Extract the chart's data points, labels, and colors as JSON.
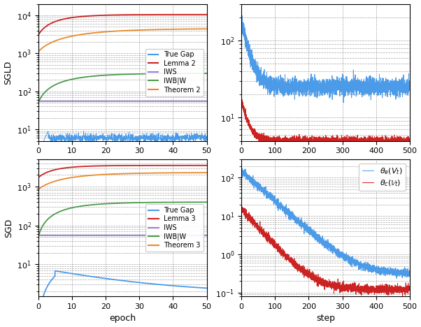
{
  "fig_width": 6.02,
  "fig_height": 4.68,
  "dpi": 100,
  "colors": {
    "true_gap": "#4C9BE8",
    "lemma": "#CC2222",
    "iws": "#9B7FD4",
    "iwbw": "#4A9A4A",
    "theorem": "#E88A2A",
    "blue_right": "#4C9BE8",
    "red_right": "#CC2222"
  },
  "top_left": {
    "ylabel": "SGLD",
    "xlim": [
      0,
      50
    ],
    "ylim": [
      5,
      20000
    ],
    "legend_labels": [
      "True Gap",
      "Lemma 2",
      "IWS",
      "IWB|W",
      "Theorem 2"
    ]
  },
  "top_right": {
    "xlim": [
      0,
      500
    ],
    "ylim": [
      5,
      300
    ]
  },
  "bottom_left": {
    "ylabel": "SGD",
    "xlabel": "epoch",
    "xlim": [
      0,
      50
    ],
    "ylim": [
      1.5,
      5000
    ],
    "legend_labels": [
      "True Gap",
      "Lemma 3",
      "IWS",
      "IWB|W",
      "Theorem 3"
    ]
  },
  "bottom_right": {
    "xlabel": "step",
    "xlim": [
      0,
      500
    ],
    "ylim": [
      0.08,
      300
    ]
  }
}
